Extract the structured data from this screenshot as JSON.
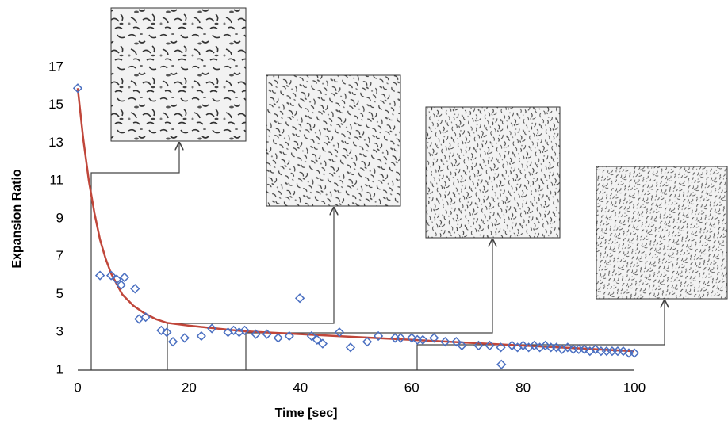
{
  "chart_data": {
    "type": "scatter",
    "x_label": "Time [sec]",
    "y_label": "Expansion Ratio",
    "xlim": [
      0,
      100
    ],
    "xticks": [
      0,
      20,
      40,
      60,
      80,
      100
    ],
    "ylim": [
      1,
      17
    ],
    "yticks": [
      1,
      3,
      5,
      7,
      9,
      11,
      13,
      15,
      17
    ],
    "grid": false,
    "series": [
      {
        "type": "scatter",
        "color": "#4a6fc1",
        "x": [
          0,
          4,
          6,
          7,
          7.8,
          8.4,
          10.3,
          11,
          12.2,
          15,
          16,
          17.1,
          19.2,
          22.2,
          24.1,
          27,
          28,
          29,
          30,
          32,
          34,
          36,
          38,
          39.9,
          42,
          43,
          44,
          47,
          49,
          52,
          54,
          57,
          58,
          60,
          61,
          62,
          64,
          66,
          68,
          69,
          72,
          74,
          76.1,
          76,
          78,
          79,
          80,
          81,
          82,
          83,
          84,
          85,
          86,
          87,
          88,
          89,
          90,
          91,
          92,
          93,
          94,
          95,
          96,
          97,
          98,
          99,
          100
        ],
        "values": [
          15.9,
          6.0,
          6.0,
          5.8,
          5.5,
          5.9,
          5.3,
          3.7,
          3.8,
          3.1,
          3.0,
          2.5,
          2.7,
          2.8,
          3.2,
          3.0,
          3.1,
          3.0,
          3.1,
          2.9,
          2.9,
          2.7,
          2.8,
          4.8,
          2.8,
          2.6,
          2.4,
          3.0,
          2.2,
          2.5,
          2.8,
          2.7,
          2.7,
          2.7,
          2.6,
          2.6,
          2.7,
          2.5,
          2.5,
          2.3,
          2.3,
          2.3,
          1.3,
          2.2,
          2.3,
          2.2,
          2.3,
          2.2,
          2.3,
          2.2,
          2.3,
          2.2,
          2.2,
          2.1,
          2.2,
          2.1,
          2.1,
          2.1,
          2.0,
          2.1,
          2.0,
          2.0,
          2.0,
          2.0,
          2.0,
          1.9,
          1.9
        ]
      },
      {
        "type": "line",
        "color": "#c0463a",
        "x": [
          0,
          1,
          2,
          3,
          4,
          5,
          6,
          8,
          10,
          12,
          14,
          16,
          20,
          25,
          30,
          40,
          50,
          60,
          70,
          80,
          90,
          100
        ],
        "values": [
          15.9,
          13.2,
          11.0,
          9.3,
          7.9,
          6.9,
          6.1,
          5.0,
          4.4,
          4.0,
          3.7,
          3.5,
          3.35,
          3.2,
          3.05,
          2.9,
          2.75,
          2.6,
          2.45,
          2.3,
          2.15,
          2.0
        ]
      }
    ]
  }
}
